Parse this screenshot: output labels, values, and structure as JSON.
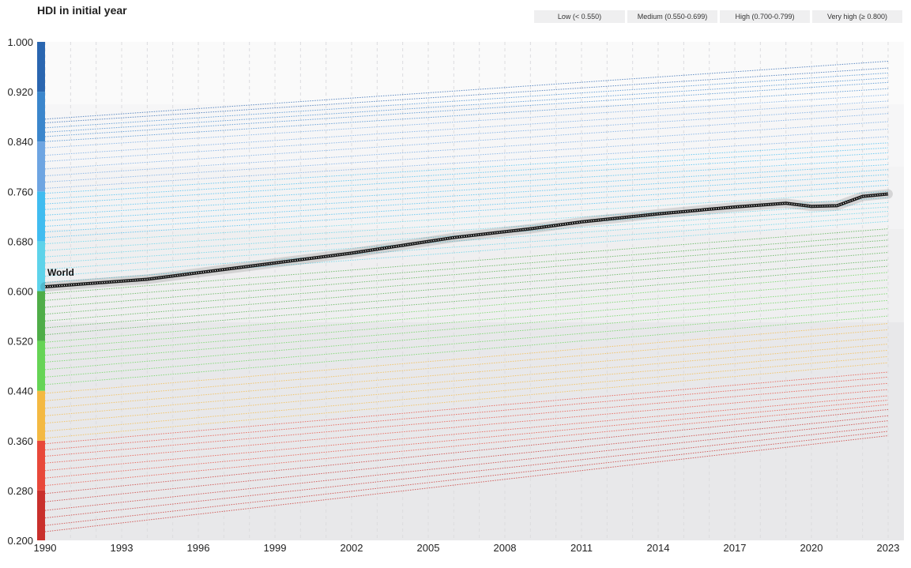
{
  "title": "HDI in initial year",
  "legend": [
    {
      "label": "Low (< 0.550)",
      "color": "#d73027"
    },
    {
      "label": "Medium (0.550-0.699)",
      "color": "#f4b942"
    },
    {
      "label": "High (0.700-0.799)",
      "color": "#5cc6e8"
    },
    {
      "label": "Very high (≥ 0.800)",
      "color": "#2e6db4"
    }
  ],
  "chart_data": {
    "type": "line",
    "title": "HDI in initial year",
    "x_range": [
      1990,
      2023
    ],
    "x_ticks": [
      1990,
      1993,
      1996,
      1999,
      2002,
      2005,
      2008,
      2011,
      2014,
      2017,
      2020,
      2023
    ],
    "y_range": [
      0.2,
      1.0
    ],
    "y_ticks": [
      "0.200",
      "0.280",
      "0.360",
      "0.440",
      "0.520",
      "0.600",
      "0.680",
      "0.760",
      "0.840",
      "0.920",
      "1.000"
    ],
    "grid": true,
    "color_scale": [
      {
        "from": 0.2,
        "to": 0.28,
        "color": "#c9302c"
      },
      {
        "from": 0.28,
        "to": 0.36,
        "color": "#e8483a"
      },
      {
        "from": 0.36,
        "to": 0.44,
        "color": "#f4b942"
      },
      {
        "from": 0.44,
        "to": 0.52,
        "color": "#66d455"
      },
      {
        "from": 0.52,
        "to": 0.6,
        "color": "#4fad48"
      },
      {
        "from": 0.6,
        "to": 0.68,
        "color": "#5ed3ea"
      },
      {
        "from": 0.68,
        "to": 0.76,
        "color": "#40bcf0"
      },
      {
        "from": 0.76,
        "to": 0.84,
        "color": "#6ea5e2"
      },
      {
        "from": 0.84,
        "to": 0.92,
        "color": "#3b86cc"
      },
      {
        "from": 0.92,
        "to": 1.0,
        "color": "#2a66b0"
      }
    ],
    "series": [
      {
        "name": "World",
        "highlight": true,
        "x": [
          1990,
          1994,
          1998,
          2002,
          2006,
          2009,
          2011,
          2014,
          2017,
          2019,
          2020,
          2021,
          2022,
          2023
        ],
        "values": [
          0.607,
          0.619,
          0.64,
          0.661,
          0.686,
          0.7,
          0.711,
          0.724,
          0.735,
          0.741,
          0.736,
          0.737,
          0.752,
          0.756
        ]
      },
      {
        "x": [
          1990,
          2023
        ],
        "values": [
          0.876,
          0.969
        ],
        "color": "#2a66b0"
      },
      {
        "x": [
          1990,
          2023
        ],
        "values": [
          0.87,
          0.958
        ],
        "color": "#2a66b0"
      },
      {
        "x": [
          1990,
          2023
        ],
        "values": [
          0.862,
          0.95
        ],
        "color": "#3b86cc"
      },
      {
        "x": [
          1990,
          2023
        ],
        "values": [
          0.855,
          0.942
        ],
        "color": "#3b86cc"
      },
      {
        "x": [
          1990,
          2023
        ],
        "values": [
          0.848,
          0.935
        ],
        "color": "#3b86cc"
      },
      {
        "x": [
          1990,
          2023
        ],
        "values": [
          0.84,
          0.925
        ],
        "color": "#3b86cc"
      },
      {
        "x": [
          1990,
          2023
        ],
        "values": [
          0.83,
          0.915
        ],
        "color": "#6ea5e2"
      },
      {
        "x": [
          1990,
          2023
        ],
        "values": [
          0.818,
          0.905
        ],
        "color": "#6ea5e2"
      },
      {
        "x": [
          1990,
          2023
        ],
        "values": [
          0.808,
          0.895
        ],
        "color": "#6ea5e2"
      },
      {
        "x": [
          1990,
          2023
        ],
        "values": [
          0.796,
          0.885
        ],
        "color": "#6ea5e2"
      },
      {
        "x": [
          1990,
          2023
        ],
        "values": [
          0.785,
          0.872
        ],
        "color": "#6ea5e2"
      },
      {
        "x": [
          1990,
          2023
        ],
        "values": [
          0.775,
          0.86
        ],
        "color": "#6ea5e2"
      },
      {
        "x": [
          1990,
          2023
        ],
        "values": [
          0.765,
          0.848
        ],
        "color": "#6ea5e2"
      },
      {
        "x": [
          1990,
          2023
        ],
        "values": [
          0.757,
          0.838
        ],
        "color": "#40bcf0"
      },
      {
        "x": [
          1990,
          2023
        ],
        "values": [
          0.748,
          0.83
        ],
        "color": "#40bcf0"
      },
      {
        "x": [
          1990,
          2023
        ],
        "values": [
          0.74,
          0.822
        ],
        "color": "#40bcf0"
      },
      {
        "x": [
          1990,
          2023
        ],
        "values": [
          0.731,
          0.812
        ],
        "color": "#40bcf0"
      },
      {
        "x": [
          1990,
          2023
        ],
        "values": [
          0.722,
          0.803
        ],
        "color": "#40bcf0"
      },
      {
        "x": [
          1990,
          2023
        ],
        "values": [
          0.713,
          0.795
        ],
        "color": "#40bcf0"
      },
      {
        "x": [
          1990,
          2023
        ],
        "values": [
          0.704,
          0.787
        ],
        "color": "#40bcf0"
      },
      {
        "x": [
          1990,
          2023
        ],
        "values": [
          0.695,
          0.778
        ],
        "color": "#40bcf0"
      },
      {
        "x": [
          1990,
          2023
        ],
        "values": [
          0.686,
          0.77
        ],
        "color": "#40bcf0"
      },
      {
        "x": [
          1990,
          2023
        ],
        "values": [
          0.676,
          0.76
        ],
        "color": "#5ed3ea"
      },
      {
        "x": [
          1990,
          2023
        ],
        "values": [
          0.665,
          0.75
        ],
        "color": "#5ed3ea"
      },
      {
        "x": [
          1990,
          2023
        ],
        "values": [
          0.655,
          0.742
        ],
        "color": "#5ed3ea"
      },
      {
        "x": [
          1990,
          2023
        ],
        "values": [
          0.645,
          0.735
        ],
        "color": "#5ed3ea"
      },
      {
        "x": [
          1990,
          2023
        ],
        "values": [
          0.635,
          0.728
        ],
        "color": "#5ed3ea"
      },
      {
        "x": [
          1990,
          2023
        ],
        "values": [
          0.624,
          0.72
        ],
        "color": "#5ed3ea"
      },
      {
        "x": [
          1990,
          2023
        ],
        "values": [
          0.614,
          0.712
        ],
        "color": "#5ed3ea"
      },
      {
        "x": [
          1990,
          2023
        ],
        "values": [
          0.596,
          0.7
        ],
        "color": "#4fad48"
      },
      {
        "x": [
          1990,
          2023
        ],
        "values": [
          0.585,
          0.69
        ],
        "color": "#4fad48"
      },
      {
        "x": [
          1990,
          2023
        ],
        "values": [
          0.574,
          0.682
        ],
        "color": "#4fad48"
      },
      {
        "x": [
          1990,
          2023
        ],
        "values": [
          0.563,
          0.672
        ],
        "color": "#4fad48"
      },
      {
        "x": [
          1990,
          2023
        ],
        "values": [
          0.552,
          0.662
        ],
        "color": "#4fad48"
      },
      {
        "x": [
          1990,
          2023
        ],
        "values": [
          0.541,
          0.65
        ],
        "color": "#4fad48"
      },
      {
        "x": [
          1990,
          2023
        ],
        "values": [
          0.53,
          0.64
        ],
        "color": "#4fad48"
      },
      {
        "x": [
          1990,
          2023
        ],
        "values": [
          0.518,
          0.63
        ],
        "color": "#66d455"
      },
      {
        "x": [
          1990,
          2023
        ],
        "values": [
          0.508,
          0.618
        ],
        "color": "#66d455"
      },
      {
        "x": [
          1990,
          2023
        ],
        "values": [
          0.497,
          0.606
        ],
        "color": "#66d455"
      },
      {
        "x": [
          1990,
          2023
        ],
        "values": [
          0.486,
          0.596
        ],
        "color": "#66d455"
      },
      {
        "x": [
          1990,
          2023
        ],
        "values": [
          0.474,
          0.585
        ],
        "color": "#66d455"
      },
      {
        "x": [
          1990,
          2023
        ],
        "values": [
          0.462,
          0.572
        ],
        "color": "#66d455"
      },
      {
        "x": [
          1990,
          2023
        ],
        "values": [
          0.45,
          0.56
        ],
        "color": "#66d455"
      },
      {
        "x": [
          1990,
          2023
        ],
        "values": [
          0.436,
          0.548
        ],
        "color": "#f4b942"
      },
      {
        "x": [
          1990,
          2023
        ],
        "values": [
          0.424,
          0.538
        ],
        "color": "#f4b942"
      },
      {
        "x": [
          1990,
          2023
        ],
        "values": [
          0.412,
          0.526
        ],
        "color": "#f4b942"
      },
      {
        "x": [
          1990,
          2023
        ],
        "values": [
          0.4,
          0.515
        ],
        "color": "#f4b942"
      },
      {
        "x": [
          1990,
          2023
        ],
        "values": [
          0.388,
          0.505
        ],
        "color": "#f4b942"
      },
      {
        "x": [
          1990,
          2023
        ],
        "values": [
          0.375,
          0.495
        ],
        "color": "#f4b942"
      },
      {
        "x": [
          1990,
          2023
        ],
        "values": [
          0.364,
          0.485
        ],
        "color": "#f4b942"
      },
      {
        "x": [
          1990,
          2023
        ],
        "values": [
          0.355,
          0.47
        ],
        "color": "#e8483a"
      },
      {
        "x": [
          1990,
          2023
        ],
        "values": [
          0.345,
          0.462
        ],
        "color": "#e8483a"
      },
      {
        "x": [
          1990,
          2023
        ],
        "values": [
          0.335,
          0.452
        ],
        "color": "#e8483a"
      },
      {
        "x": [
          1990,
          2023
        ],
        "values": [
          0.324,
          0.442
        ],
        "color": "#e8483a"
      },
      {
        "x": [
          1990,
          2023
        ],
        "values": [
          0.312,
          0.432
        ],
        "color": "#e8483a"
      },
      {
        "x": [
          1990,
          2023
        ],
        "values": [
          0.3,
          0.425
        ],
        "color": "#e8483a"
      },
      {
        "x": [
          1990,
          2023
        ],
        "values": [
          0.288,
          0.418
        ],
        "color": "#e8483a"
      },
      {
        "x": [
          1990,
          2023
        ],
        "values": [
          0.275,
          0.41
        ],
        "color": "#c9302c"
      },
      {
        "x": [
          1990,
          2023
        ],
        "values": [
          0.262,
          0.4
        ],
        "color": "#c9302c"
      },
      {
        "x": [
          1990,
          2023
        ],
        "values": [
          0.248,
          0.392
        ],
        "color": "#c9302c"
      },
      {
        "x": [
          1990,
          2023
        ],
        "values": [
          0.236,
          0.383
        ],
        "color": "#c9302c"
      },
      {
        "x": [
          1990,
          2023
        ],
        "values": [
          0.224,
          0.375
        ],
        "color": "#c9302c"
      },
      {
        "x": [
          1990,
          2023
        ],
        "values": [
          0.214,
          0.368
        ],
        "color": "#c9302c"
      }
    ]
  }
}
